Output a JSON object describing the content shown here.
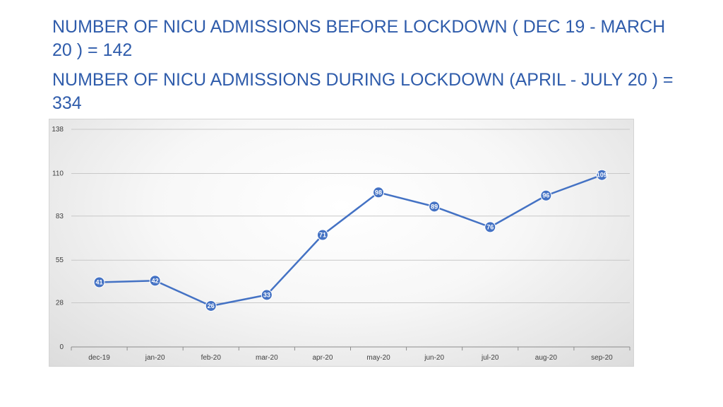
{
  "headings": {
    "before": "NUMBER OF NICU ADMISSIONS BEFORE LOCKDOWN ( DEC 19 - MARCH 20 ) = 142",
    "during": "NUMBER OF NICU ADMISSIONS  DURING LOCKDOWN (APRIL - JULY 20 ) = 334"
  },
  "colors": {
    "heading": "#2f5cab",
    "series": "#4472c4",
    "grid": "#c8c8c8"
  },
  "chart_data": {
    "type": "line",
    "title": "",
    "xlabel": "",
    "ylabel": "",
    "categories": [
      "dec-19",
      "jan-20",
      "feb-20",
      "mar-20",
      "apr-20",
      "may-20",
      "jun-20",
      "jul-20",
      "aug-20",
      "sep-20"
    ],
    "series": [
      {
        "values": [
          41,
          42,
          26,
          33,
          71,
          98,
          89,
          76,
          96,
          109
        ]
      }
    ],
    "yticks": [
      "0",
      "28",
      "55",
      "83",
      "110",
      "138"
    ],
    "ylim": [
      0,
      138
    ],
    "grid": true,
    "data_labels": true,
    "legend": "none"
  }
}
